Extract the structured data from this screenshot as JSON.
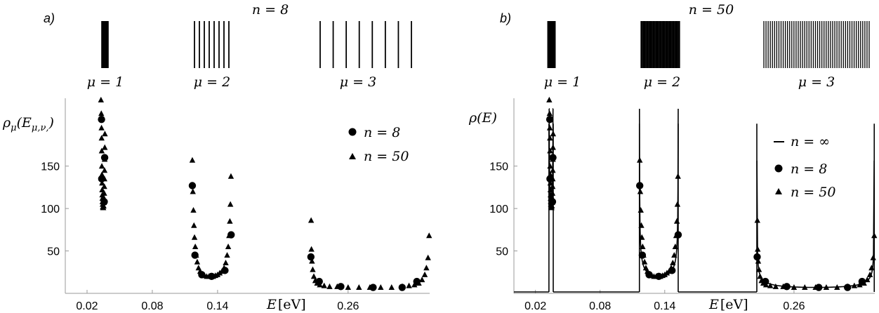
{
  "chart_data": [
    {
      "type": "scatter",
      "panel_label": "a)",
      "title": "n = 8",
      "ylabel": "ρ_μ(E_μ,ν,)",
      "ylabel_main": "ρ",
      "ylabel_sub": "μ",
      "ylabel_arg": "(E",
      "ylabel_arg_sub": "μ,ν,",
      "ylabel_close": ")",
      "xlabel": "E [eV]",
      "xlabel_var": "E",
      "xlabel_unit": "[eV]",
      "x_ticks": [
        "0.02",
        "0.08",
        "0.14",
        "0.26"
      ],
      "y_ticks": [
        "50",
        "100",
        "150"
      ],
      "band_labels": [
        "μ = 1",
        "μ = 2",
        "μ = 3"
      ],
      "legend": [
        {
          "marker": "circle",
          "label": "n = 8"
        },
        {
          "marker": "triangle",
          "label": "n = 50"
        }
      ],
      "series": [
        {
          "name": "n = 8",
          "marker": "circle",
          "points": [
            [
              0.0333,
              205
            ],
            [
              0.0362,
              160
            ],
            [
              0.0335,
              135
            ],
            [
              0.0358,
              108
            ],
            [
              0.1168,
              127
            ],
            [
              0.1192,
              45
            ],
            [
              0.1255,
              22
            ],
            [
              0.1345,
              20
            ],
            [
              0.1468,
              27
            ],
            [
              0.1525,
              69
            ],
            [
              0.2258,
              43
            ],
            [
              0.2335,
              14
            ],
            [
              0.2533,
              8
            ],
            [
              0.283,
              7
            ],
            [
              0.3097,
              7
            ],
            [
              0.3232,
              14
            ]
          ]
        },
        {
          "name": "n = 50",
          "marker": "triangle",
          "points": [
            [
              0.0328,
              228
            ],
            [
              0.0331,
              212
            ],
            [
              0.0333,
              195
            ],
            [
              0.0334,
              183
            ],
            [
              0.0335,
              168
            ],
            [
              0.0336,
              150
            ],
            [
              0.0337,
              140
            ],
            [
              0.0338,
              130
            ],
            [
              0.0339,
              122
            ],
            [
              0.034,
              116
            ],
            [
              0.0341,
              112
            ],
            [
              0.0342,
              108
            ],
            [
              0.0343,
              105
            ],
            [
              0.0345,
              102
            ],
            [
              0.0347,
              101
            ],
            [
              0.035,
              101
            ],
            [
              0.0353,
              103
            ],
            [
              0.0355,
              107
            ],
            [
              0.0357,
              112
            ],
            [
              0.0358,
              118
            ],
            [
              0.0359,
              126
            ],
            [
              0.036,
              135
            ],
            [
              0.0361,
              145
            ],
            [
              0.0362,
              158
            ],
            [
              0.0363,
              172
            ],
            [
              0.0364,
              188
            ],
            [
              0.1168,
              157
            ],
            [
              0.1173,
              120
            ],
            [
              0.1178,
              98
            ],
            [
              0.1183,
              80
            ],
            [
              0.1188,
              66
            ],
            [
              0.1195,
              55
            ],
            [
              0.1203,
              45
            ],
            [
              0.1213,
              37
            ],
            [
              0.1225,
              30
            ],
            [
              0.124,
              26
            ],
            [
              0.126,
              23
            ],
            [
              0.128,
              21
            ],
            [
              0.13,
              20
            ],
            [
              0.132,
              20
            ],
            [
              0.134,
              20
            ],
            [
              0.136,
              20
            ],
            [
              0.138,
              21
            ],
            [
              0.14,
              22
            ],
            [
              0.142,
              24
            ],
            [
              0.144,
              26
            ],
            [
              0.146,
              30
            ],
            [
              0.1475,
              36
            ],
            [
              0.1488,
              45
            ],
            [
              0.1498,
              55
            ],
            [
              0.1506,
              68
            ],
            [
              0.1513,
              85
            ],
            [
              0.1518,
              105
            ],
            [
              0.1523,
              138
            ],
            [
              0.226,
              86
            ],
            [
              0.2263,
              52
            ],
            [
              0.2268,
              38
            ],
            [
              0.2275,
              28
            ],
            [
              0.2285,
              20
            ],
            [
              0.2298,
              15
            ],
            [
              0.2315,
              12
            ],
            [
              0.234,
              10
            ],
            [
              0.238,
              9
            ],
            [
              0.243,
              8
            ],
            [
              0.25,
              8
            ],
            [
              0.26,
              7
            ],
            [
              0.27,
              7
            ],
            [
              0.28,
              7
            ],
            [
              0.29,
              7
            ],
            [
              0.3,
              7
            ],
            [
              0.31,
              8
            ],
            [
              0.316,
              9
            ],
            [
              0.321,
              10
            ],
            [
              0.325,
              12
            ],
            [
              0.328,
              16
            ],
            [
              0.3305,
              22
            ],
            [
              0.332,
              30
            ],
            [
              0.3335,
              42
            ],
            [
              0.3345,
              68
            ]
          ]
        }
      ],
      "ylim": [
        0,
        230
      ],
      "xlim": [
        0.0,
        0.335
      ]
    },
    {
      "type": "scatter",
      "panel_label": "b)",
      "title": "n = 50",
      "ylabel": "ρ(E)",
      "ylabel_main": "ρ(E)",
      "xlabel": "E [eV]",
      "xlabel_var": "E",
      "xlabel_unit": "[eV]",
      "x_ticks": [
        "0.02",
        "0.08",
        "0.14",
        "0.26"
      ],
      "y_ticks": [
        "50",
        "100",
        "150"
      ],
      "band_labels": [
        "μ = 1",
        "μ = 2",
        "μ = 3"
      ],
      "legend": [
        {
          "marker": "line",
          "label": "n = ∞"
        },
        {
          "marker": "circle",
          "label": "n = 8"
        },
        {
          "marker": "triangle",
          "label": "n = 50"
        }
      ],
      "bands": [
        [
          0.0325,
          0.0365
        ],
        [
          0.1165,
          0.1525
        ],
        [
          0.2255,
          0.3345
        ]
      ],
      "ylim": [
        0,
        230
      ],
      "xlim": [
        0.0,
        0.335
      ]
    }
  ]
}
